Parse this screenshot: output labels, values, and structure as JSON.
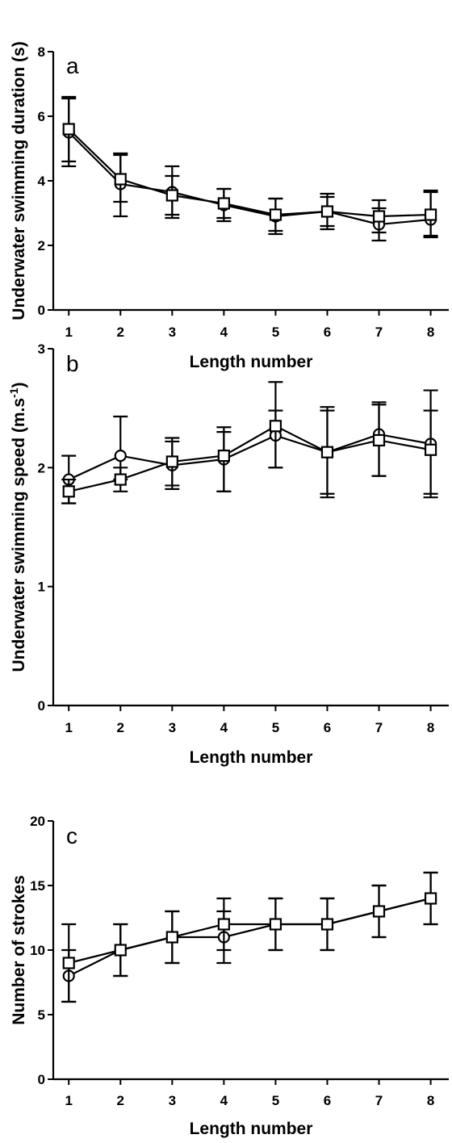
{
  "chart_data": [
    {
      "type": "line",
      "panel_letter": "a",
      "xlabel": "Length number",
      "ylabel": "Underwater swimming duration (s)",
      "x": [
        1,
        2,
        3,
        4,
        5,
        6,
        7,
        8
      ],
      "xlim": [
        0.7,
        8.35
      ],
      "ylim": [
        0,
        8
      ],
      "yticks": [
        0,
        2,
        4,
        6,
        8
      ],
      "series": [
        {
          "marker": "circle",
          "values": [
            5.5,
            3.9,
            3.65,
            3.25,
            2.9,
            3.05,
            2.65,
            2.8
          ],
          "err_hi": [
            1.05,
            0.9,
            0.8,
            0.5,
            0.55,
            0.55,
            0.5,
            0.9
          ],
          "err_lo": [
            1.05,
            1.0,
            0.8,
            0.5,
            0.55,
            0.55,
            0.5,
            0.5
          ]
        },
        {
          "marker": "square",
          "values": [
            5.6,
            4.05,
            3.55,
            3.3,
            2.95,
            3.05,
            2.9,
            2.95
          ],
          "err_hi": [
            1.0,
            0.8,
            0.6,
            0.45,
            0.5,
            0.45,
            0.5,
            0.7
          ],
          "err_lo": [
            1.0,
            0.7,
            0.6,
            0.45,
            0.5,
            0.45,
            0.5,
            0.7
          ]
        }
      ]
    },
    {
      "type": "line",
      "panel_letter": "b",
      "xlabel": "Length number",
      "ylabel": "Underwater swimming speed (m.s",
      "ylabel_sup": "-1",
      "ylabel_close": ")",
      "x": [
        1,
        2,
        3,
        4,
        5,
        6,
        7,
        8
      ],
      "xlim": [
        0.7,
        8.35
      ],
      "ylim": [
        0,
        3
      ],
      "yticks": [
        0,
        1,
        2,
        3
      ],
      "series": [
        {
          "marker": "circle",
          "values": [
            1.9,
            2.1,
            2.02,
            2.07,
            2.27,
            2.13,
            2.28,
            2.2
          ],
          "err_hi": [
            0.2,
            0.33,
            0.2,
            0.27,
            0.45,
            0.38,
            0.27,
            0.45
          ],
          "err_lo": [
            0.2,
            0.2,
            0.2,
            0.27,
            0.27,
            0.38,
            0.35,
            0.45
          ]
        },
        {
          "marker": "square",
          "values": [
            1.8,
            1.9,
            2.05,
            2.1,
            2.35,
            2.13,
            2.23,
            2.15
          ],
          "err_hi": [
            0.1,
            0.1,
            0.2,
            0.2,
            0.13,
            0.35,
            0.3,
            0.33
          ],
          "err_lo": [
            0.1,
            0.1,
            0.2,
            0.3,
            0.35,
            0.35,
            0.3,
            0.37
          ]
        }
      ]
    },
    {
      "type": "line",
      "panel_letter": "c",
      "xlabel": "Length number",
      "ylabel": "Number of strokes",
      "x": [
        1,
        2,
        3,
        4,
        5,
        6,
        7,
        8
      ],
      "xlim": [
        0.7,
        8.35
      ],
      "ylim": [
        0,
        20
      ],
      "yticks": [
        0,
        5,
        10,
        15,
        20
      ],
      "series": [
        {
          "marker": "circle",
          "values": [
            8,
            10,
            11,
            11,
            12,
            12,
            13,
            14
          ],
          "err_hi": [
            2,
            2,
            2,
            2,
            2,
            2,
            2,
            2
          ],
          "err_lo": [
            2,
            2,
            2,
            2,
            2,
            2,
            2,
            2
          ]
        },
        {
          "marker": "square",
          "values": [
            9,
            10,
            11,
            12,
            12,
            12,
            13,
            14
          ],
          "err_hi": [
            3,
            2,
            2,
            2,
            2,
            2,
            2,
            2
          ],
          "err_lo": [
            3,
            2,
            2,
            2,
            2,
            2,
            2,
            2
          ]
        }
      ]
    }
  ]
}
